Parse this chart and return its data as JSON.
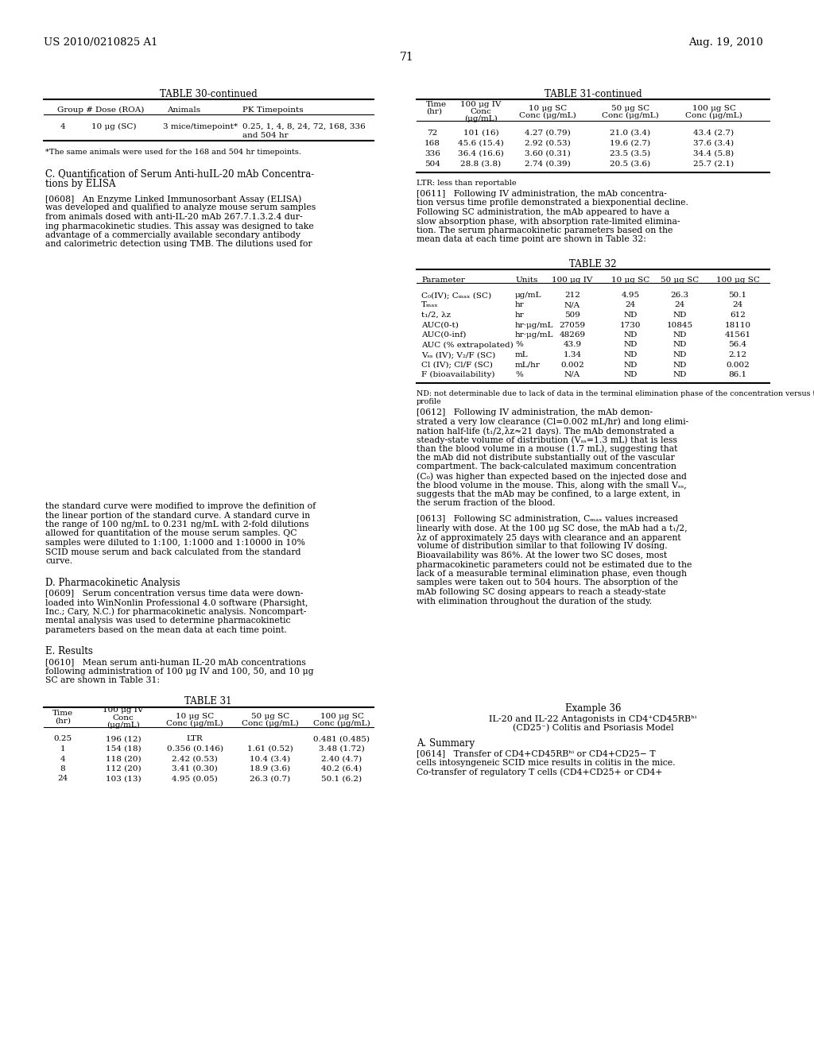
{
  "header_left": "US 2010/0210825 A1",
  "header_right": "Aug. 19, 2010",
  "page_number": "71",
  "table30_title": "TABLE 30-continued",
  "table31cont_title": "TABLE 31-continued",
  "table32_title": "TABLE 32",
  "table31_title": "TABLE 31",
  "table30_footnote": "*The same animals were used for the 168 and 504 hr timepoints.",
  "table31cont_footnote": "LTR: less than reportable",
  "table32_footnote_line1": "ND: not determinable due to lack of data in the terminal elimination phase of the concentration versus time",
  "table32_footnote_line2": "profile",
  "sec_c_line1": "C. Quantification of Serum Anti-huIL-20 mAb Concentra-",
  "sec_c_line2": "tions by ELISA",
  "sec_d": "D. Pharmacokinetic Analysis",
  "sec_e": "E. Results",
  "ex36_title": "Example 36",
  "ex36_sub1": "IL-20 and IL-22 Antagonists in CD4⁺CD45RBʰⁱ",
  "ex36_sub2": "(CD25⁻) Colitis and Psoriasis Model",
  "sec_a": "A. Summary",
  "p0608_lines": [
    "[0608]   An Enzyme Linked Immunosorbant Assay (ELISA)",
    "was developed and qualified to analyze mouse serum samples",
    "from animals dosed with anti-IL-20 mAb 267.7.1.3.2.4 dur-",
    "ing pharmacokinetic studies. This assay was designed to take",
    "advantage of a commercially available secondary antibody",
    "and calorimetric detection using TMB. The dilutions used for"
  ],
  "p0608_cont_lines": [
    "the standard curve were modified to improve the definition of",
    "the linear portion of the standard curve. A standard curve in",
    "the range of 100 ng/mL to 0.231 ng/mL with 2-fold dilutions",
    "allowed for quantitation of the mouse serum samples. QC",
    "samples were diluted to 1:100, 1:1000 and 1:10000 in 10%",
    "SCID mouse serum and back calculated from the standard",
    "curve."
  ],
  "p0609_lines": [
    "[0609]   Serum concentration versus time data were down-",
    "loaded into WinNonlin Professional 4.0 software (Pharsight,",
    "Inc.; Cary, N.C.) for pharmacokinetic analysis. Noncompart-",
    "mental analysis was used to determine pharmacokinetic",
    "parameters based on the mean data at each time point."
  ],
  "p0610_lines": [
    "[0610]   Mean serum anti-human IL-20 mAb concentrations",
    "following administration of 100 μg IV and 100, 50, and 10 μg",
    "SC are shown in Table 31:"
  ],
  "p0611_lines": [
    "[0611]   Following IV administration, the mAb concentra-",
    "tion versus time profile demonstrated a biexponential decline.",
    "Following SC administration, the mAb appeared to have a",
    "slow absorption phase, with absorption rate-limited elimina-",
    "tion. The serum pharmacokinetic parameters based on the",
    "mean data at each time point are shown in Table 32:"
  ],
  "p0612_lines": [
    "[0612]   Following IV administration, the mAb demon-",
    "strated a very low clearance (Cl=0.002 mL/hr) and long elimi-",
    "nation half-life (t₁/2,λz≈21 days). The mAb demonstrated a",
    "steady-state volume of distribution (Vₛₛ=1.3 mL) that is less",
    "than the blood volume in a mouse (1.7 mL), suggesting that",
    "the mAb did not distribute substantially out of the vascular",
    "compartment. The back-calculated maximum concentration",
    "(C₀) was higher than expected based on the injected dose and",
    "the blood volume in the mouse. This, along with the small Vₛₛ,",
    "suggests that the mAb may be confined, to a large extent, in",
    "the serum fraction of the blood."
  ],
  "p0613_lines": [
    "[0613]   Following SC administration, Cₘₐₓ values increased",
    "linearly with dose. At the 100 μg SC dose, the mAb had a t₁/2,",
    "λz of approximately 25 days with clearance and an apparent",
    "volume of distribution similar to that following IV dosing.",
    "Bioavailability was 86%. At the lower two SC doses, most",
    "pharmacokinetic parameters could not be estimated due to the",
    "lack of a measurable terminal elimination phase, even though",
    "samples were taken out to 504 hours. The absorption of the",
    "mAb following SC dosing appears to reach a steady-state",
    "with elimination throughout the duration of the study."
  ],
  "p0614_lines": [
    "[0614]   Transfer of CD4+CD45RBʰⁱ or CD4+CD25− T",
    "cells intosyngeneic SCID mice results in colitis in the mice.",
    "Co-transfer of regulatory T cells (CD4+CD25+ or CD4+"
  ],
  "t31cont_rows": [
    [
      "72",
      "101 (16)",
      "4.27 (0.79)",
      "21.0 (3.4)",
      "43.4 (2.7)"
    ],
    [
      "168",
      "45.6 (15.4)",
      "2.92 (0.53)",
      "19.6 (2.7)",
      "37.6 (3.4)"
    ],
    [
      "336",
      "36.4 (16.6)",
      "3.60 (0.31)",
      "23.5 (3.5)",
      "34.4 (5.8)"
    ],
    [
      "504",
      "28.8 (3.8)",
      "2.74 (0.39)",
      "20.5 (3.6)",
      "25.7 (2.1)"
    ]
  ],
  "t32_rows": [
    [
      "C₀(IV); Cₘₐₓ (SC)",
      "μg/mL",
      "212",
      "4.95",
      "26.3",
      "50.1"
    ],
    [
      "Tₘₐₓ",
      "hr",
      "N/A",
      "24",
      "24",
      "24"
    ],
    [
      "t₁/2, λz",
      "hr",
      "509",
      "ND",
      "ND",
      "612"
    ],
    [
      "AUC(0-t)",
      "hr·μg/mL",
      "27059",
      "1730",
      "10845",
      "18110"
    ],
    [
      "AUC(0-inf)",
      "hr·μg/mL",
      "48269",
      "ND",
      "ND",
      "41561"
    ],
    [
      "AUC (% extrapolated)",
      "%",
      "43.9",
      "ND",
      "ND",
      "56.4"
    ],
    [
      "Vₛₛ (IV); V₂/F (SC)",
      "mL",
      "1.34",
      "ND",
      "ND",
      "2.12"
    ],
    [
      "Cl (IV); Cl/F (SC)",
      "mL/hr",
      "0.002",
      "ND",
      "ND",
      "0.002"
    ],
    [
      "F (bioavailability)",
      "%",
      "N/A",
      "ND",
      "ND",
      "86.1"
    ]
  ],
  "t31_rows": [
    [
      "0.25",
      "196 (12)",
      "LTR",
      "",
      "0.481 (0.485)"
    ],
    [
      "1",
      "154 (18)",
      "0.356 (0.146)",
      "1.61 (0.52)",
      "3.48 (1.72)"
    ],
    [
      "4",
      "118 (20)",
      "2.42 (0.53)",
      "10.4 (3.4)",
      "2.40 (4.7)"
    ],
    [
      "8",
      "112 (20)",
      "3.41 (0.30)",
      "18.9 (3.6)",
      "40.2 (6.4)"
    ],
    [
      "24",
      "103 (13)",
      "4.95 (0.05)",
      "26.3 (0.7)",
      "50.1 (6.2)"
    ]
  ]
}
